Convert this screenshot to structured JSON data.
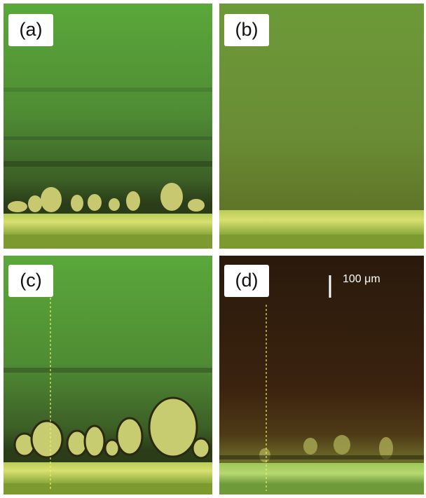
{
  "panels": [
    {
      "label": "(a)"
    },
    {
      "label": "(b)"
    },
    {
      "label": "(c)"
    },
    {
      "label": "(d)"
    }
  ],
  "scale_bar": {
    "label": "100 μm"
  }
}
